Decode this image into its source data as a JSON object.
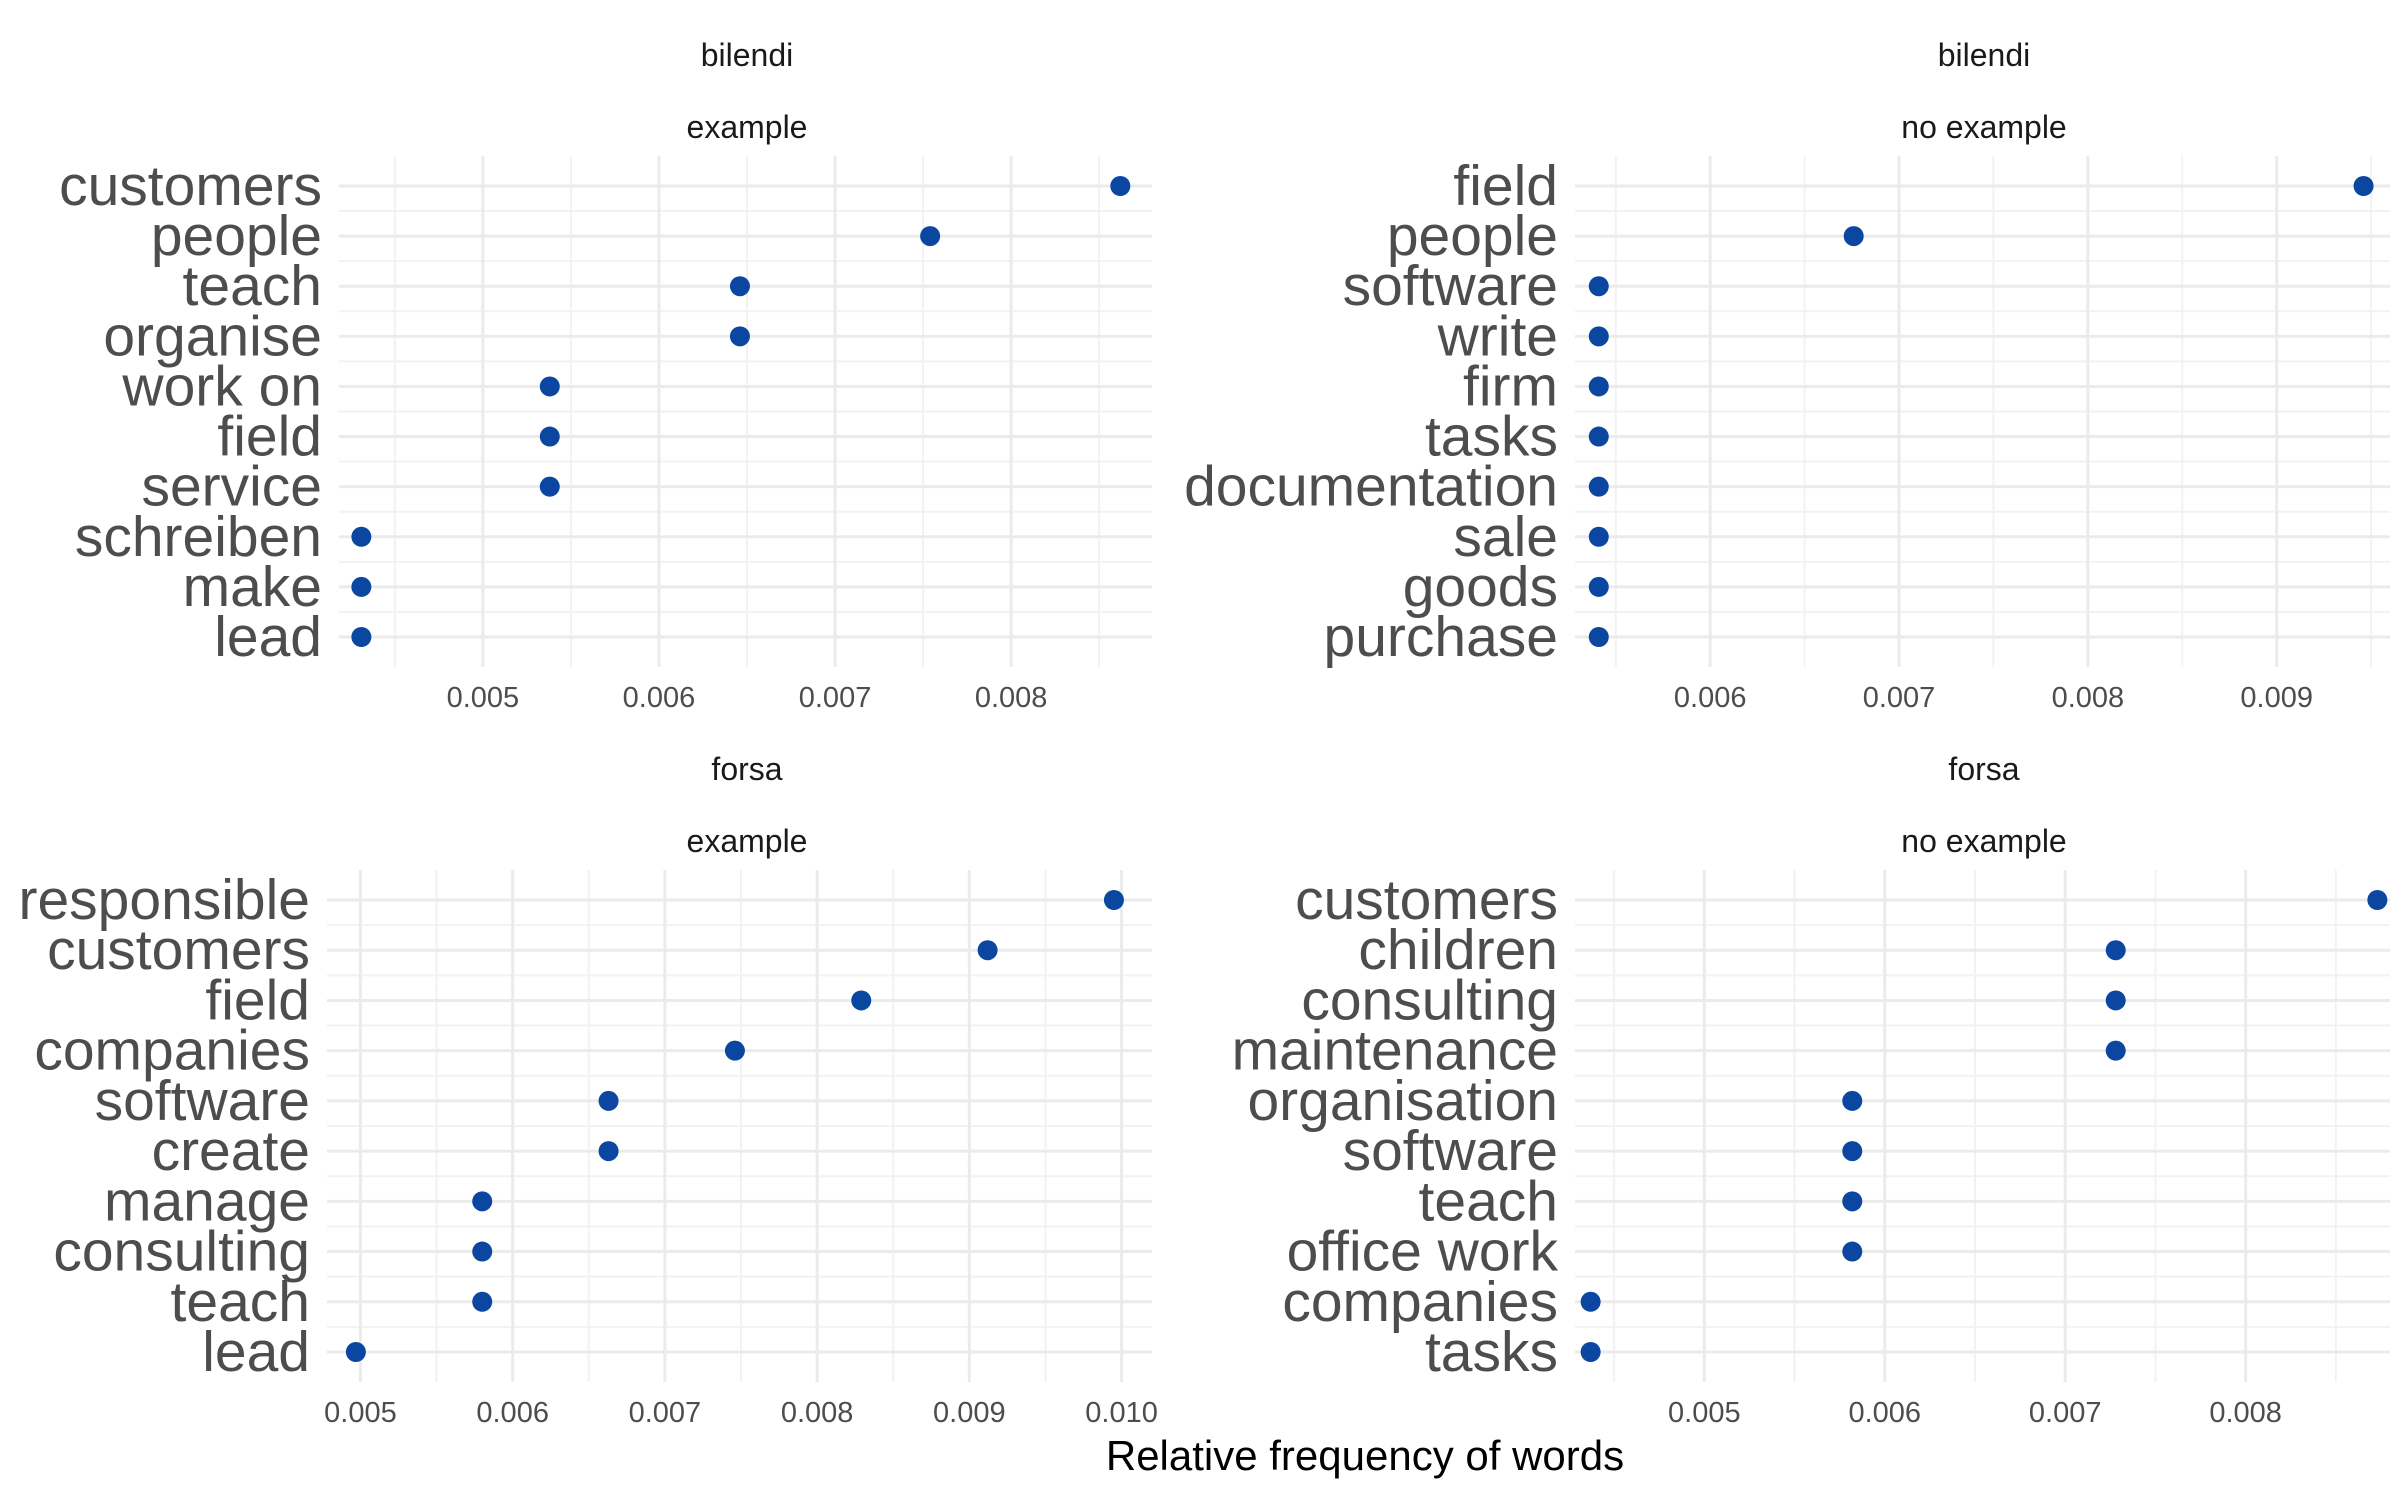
{
  "x_axis_title": "Relative frequency of words",
  "point_color": "#0b47a1",
  "grid_major_color": "#ebebeb",
  "grid_minor_color": "#f2f2f2",
  "chart_data": [
    {
      "type": "scatter",
      "facet_top": "bilendi",
      "facet_sub": "example",
      "categories": [
        "customers",
        "people",
        "teach",
        "organise",
        "work on",
        "field",
        "service",
        "schreiben",
        "make",
        "lead"
      ],
      "values": [
        0.00862,
        0.00754,
        0.00646,
        0.00646,
        0.00538,
        0.00538,
        0.00538,
        0.00431,
        0.00431,
        0.00431
      ],
      "xlim": [
        0.0042,
        0.0088
      ],
      "xticks": [
        0.005,
        0.006,
        0.007,
        0.008
      ],
      "xtick_labels": [
        "0.005",
        "0.006",
        "0.007",
        "0.008"
      ]
    },
    {
      "type": "scatter",
      "facet_top": "bilendi",
      "facet_sub": "no example",
      "categories": [
        "field",
        "people",
        "software",
        "write",
        "firm",
        "tasks",
        "documentation",
        "sale",
        "goods",
        "purchase"
      ],
      "values": [
        0.00946,
        0.00676,
        0.00541,
        0.00541,
        0.00541,
        0.00541,
        0.00541,
        0.00541,
        0.00541,
        0.00541
      ],
      "xlim": [
        0.0053,
        0.0096
      ],
      "xticks": [
        0.006,
        0.007,
        0.008,
        0.009
      ],
      "xtick_labels": [
        "0.006",
        "0.007",
        "0.008",
        "0.009"
      ]
    },
    {
      "type": "scatter",
      "facet_top": "forsa",
      "facet_sub": "example",
      "categories": [
        "responsible",
        "customers",
        "field",
        "companies",
        "software",
        "create",
        "manage",
        "consulting",
        "teach",
        "lead"
      ],
      "values": [
        0.00995,
        0.00912,
        0.00829,
        0.00746,
        0.00663,
        0.00663,
        0.0058,
        0.0058,
        0.0058,
        0.00497
      ],
      "xlim": [
        0.0048,
        0.0102
      ],
      "xticks": [
        0.005,
        0.006,
        0.007,
        0.008,
        0.009,
        0.01
      ],
      "xtick_labels": [
        "0.005",
        "0.006",
        "0.007",
        "0.008",
        "0.009",
        "0.010"
      ]
    },
    {
      "type": "scatter",
      "facet_top": "forsa",
      "facet_sub": "no example",
      "categories": [
        "customers",
        "children",
        "consulting",
        "maintenance",
        "organisation",
        "software",
        "teach",
        "office work",
        "companies",
        "tasks"
      ],
      "values": [
        0.00873,
        0.00728,
        0.00728,
        0.00728,
        0.00582,
        0.00582,
        0.00582,
        0.00582,
        0.00437,
        0.00437
      ],
      "xlim": [
        0.0043,
        0.0088
      ],
      "xticks": [
        0.005,
        0.006,
        0.007,
        0.008
      ],
      "xtick_labels": [
        "0.005",
        "0.006",
        "0.007",
        "0.008"
      ]
    }
  ]
}
